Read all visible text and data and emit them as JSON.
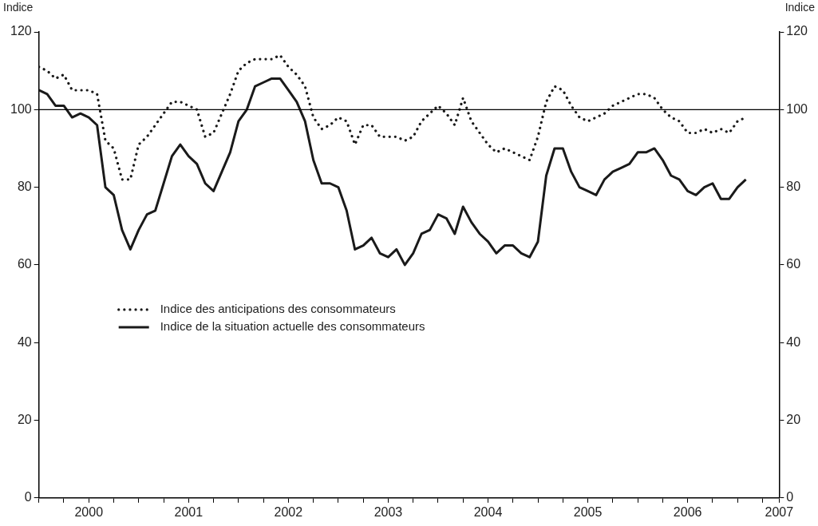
{
  "chart_data": {
    "type": "line",
    "ylabel": "Indice",
    "y2label": "Indice",
    "x": [
      "2000-01",
      "2000-02",
      "2000-03",
      "2000-04",
      "2000-05",
      "2000-06",
      "2000-07",
      "2000-08",
      "2000-09",
      "2000-10",
      "2000-11",
      "2000-12",
      "2001-01",
      "2001-02",
      "2001-03",
      "2001-04",
      "2001-05",
      "2001-06",
      "2001-07",
      "2001-08",
      "2001-09",
      "2001-10",
      "2001-11",
      "2001-12",
      "2002-01",
      "2002-02",
      "2002-03",
      "2002-04",
      "2002-05",
      "2002-06",
      "2002-07",
      "2002-08",
      "2002-09",
      "2002-10",
      "2002-11",
      "2002-12",
      "2003-01",
      "2003-02",
      "2003-03",
      "2003-04",
      "2003-05",
      "2003-06",
      "2003-07",
      "2003-08",
      "2003-09",
      "2003-10",
      "2003-11",
      "2003-12",
      "2004-01",
      "2004-02",
      "2004-03",
      "2004-04",
      "2004-05",
      "2004-06",
      "2004-07",
      "2004-08",
      "2004-09",
      "2004-10",
      "2004-11",
      "2004-12",
      "2005-01",
      "2005-02",
      "2005-03",
      "2005-04",
      "2005-05",
      "2005-06",
      "2005-07",
      "2005-08",
      "2005-09",
      "2005-10",
      "2005-11",
      "2005-12",
      "2006-01",
      "2006-02",
      "2006-03",
      "2006-04",
      "2006-05",
      "2006-06",
      "2006-07",
      "2006-08",
      "2006-09",
      "2006-10",
      "2006-11",
      "2006-12",
      "2007-01",
      "2007-02"
    ],
    "series": [
      {
        "name": "Indice des anticipations des consommateurs",
        "color": "#1a1a1a",
        "line_style": "dotted",
        "values": [
          111,
          110,
          108,
          109,
          105,
          105,
          105,
          104,
          92,
          90,
          82,
          82,
          91,
          93,
          96,
          99,
          102,
          102,
          101,
          100,
          93,
          94,
          99,
          104,
          110,
          112,
          113,
          113,
          113,
          114,
          111,
          109,
          106,
          98,
          95,
          96,
          98,
          97,
          91,
          96,
          96,
          93,
          93,
          93,
          92,
          93,
          97,
          99,
          101,
          99,
          96,
          103,
          97,
          94,
          91,
          89,
          90,
          89,
          88,
          87,
          93,
          102,
          106,
          105,
          101,
          98,
          97,
          98,
          99,
          101,
          102,
          103,
          104,
          104,
          103,
          100,
          98,
          97,
          94,
          94,
          95,
          94,
          95,
          94,
          97,
          98
        ]
      },
      {
        "name": "Indice de la situation actuelle des consommateurs",
        "color": "#1a1a1a",
        "line_style": "solid",
        "values": [
          105,
          104,
          101,
          101,
          98,
          99,
          98,
          96,
          80,
          78,
          69,
          64,
          69,
          73,
          74,
          81,
          88,
          91,
          88,
          86,
          81,
          79,
          84,
          89,
          97,
          100,
          106,
          107,
          108,
          108,
          105,
          102,
          97,
          87,
          81,
          81,
          80,
          74,
          64,
          65,
          67,
          63,
          62,
          64,
          60,
          63,
          68,
          69,
          73,
          72,
          68,
          75,
          71,
          68,
          66,
          63,
          65,
          65,
          63,
          62,
          66,
          83,
          90,
          90,
          84,
          80,
          79,
          78,
          82,
          84,
          85,
          86,
          89,
          89,
          90,
          87,
          83,
          82,
          79,
          78,
          80,
          81,
          77,
          77,
          80,
          82
        ]
      }
    ],
    "xlim": [
      "2000-01",
      "2007-06"
    ],
    "xticks": [
      {
        "value": "2000-01",
        "label": null
      },
      {
        "value": "2000-04",
        "label": null
      },
      {
        "value": "2000-07",
        "label": "2000"
      },
      {
        "value": "2000-10",
        "label": null
      },
      {
        "value": "2001-01",
        "label": null
      },
      {
        "value": "2001-04",
        "label": null
      },
      {
        "value": "2001-07",
        "label": "2001"
      },
      {
        "value": "2001-10",
        "label": null
      },
      {
        "value": "2002-01",
        "label": null
      },
      {
        "value": "2002-04",
        "label": null
      },
      {
        "value": "2002-07",
        "label": "2002"
      },
      {
        "value": "2002-10",
        "label": null
      },
      {
        "value": "2003-01",
        "label": null
      },
      {
        "value": "2003-04",
        "label": null
      },
      {
        "value": "2003-07",
        "label": "2003"
      },
      {
        "value": "2003-10",
        "label": null
      },
      {
        "value": "2004-01",
        "label": null
      },
      {
        "value": "2004-04",
        "label": null
      },
      {
        "value": "2004-07",
        "label": "2004"
      },
      {
        "value": "2004-10",
        "label": null
      },
      {
        "value": "2005-01",
        "label": null
      },
      {
        "value": "2005-04",
        "label": null
      },
      {
        "value": "2005-07",
        "label": "2005"
      },
      {
        "value": "2005-10",
        "label": null
      },
      {
        "value": "2006-01",
        "label": null
      },
      {
        "value": "2006-04",
        "label": null
      },
      {
        "value": "2006-07",
        "label": "2006"
      },
      {
        "value": "2006-10",
        "label": null
      },
      {
        "value": "2007-01",
        "label": null
      },
      {
        "value": "2007-04",
        "label": null
      },
      {
        "value": "2007-06",
        "label": "2007"
      }
    ],
    "ylim": [
      0,
      120
    ],
    "yticks": [
      0,
      20,
      40,
      60,
      80,
      100,
      120
    ],
    "y2lim": [
      0,
      120
    ],
    "y2ticks": [
      0,
      20,
      40,
      60,
      80,
      100,
      120
    ],
    "ref_lines": [
      {
        "axis": "y",
        "value": 100,
        "color": "#000000"
      }
    ],
    "grid": false,
    "marker": "none",
    "legend": "center left"
  }
}
